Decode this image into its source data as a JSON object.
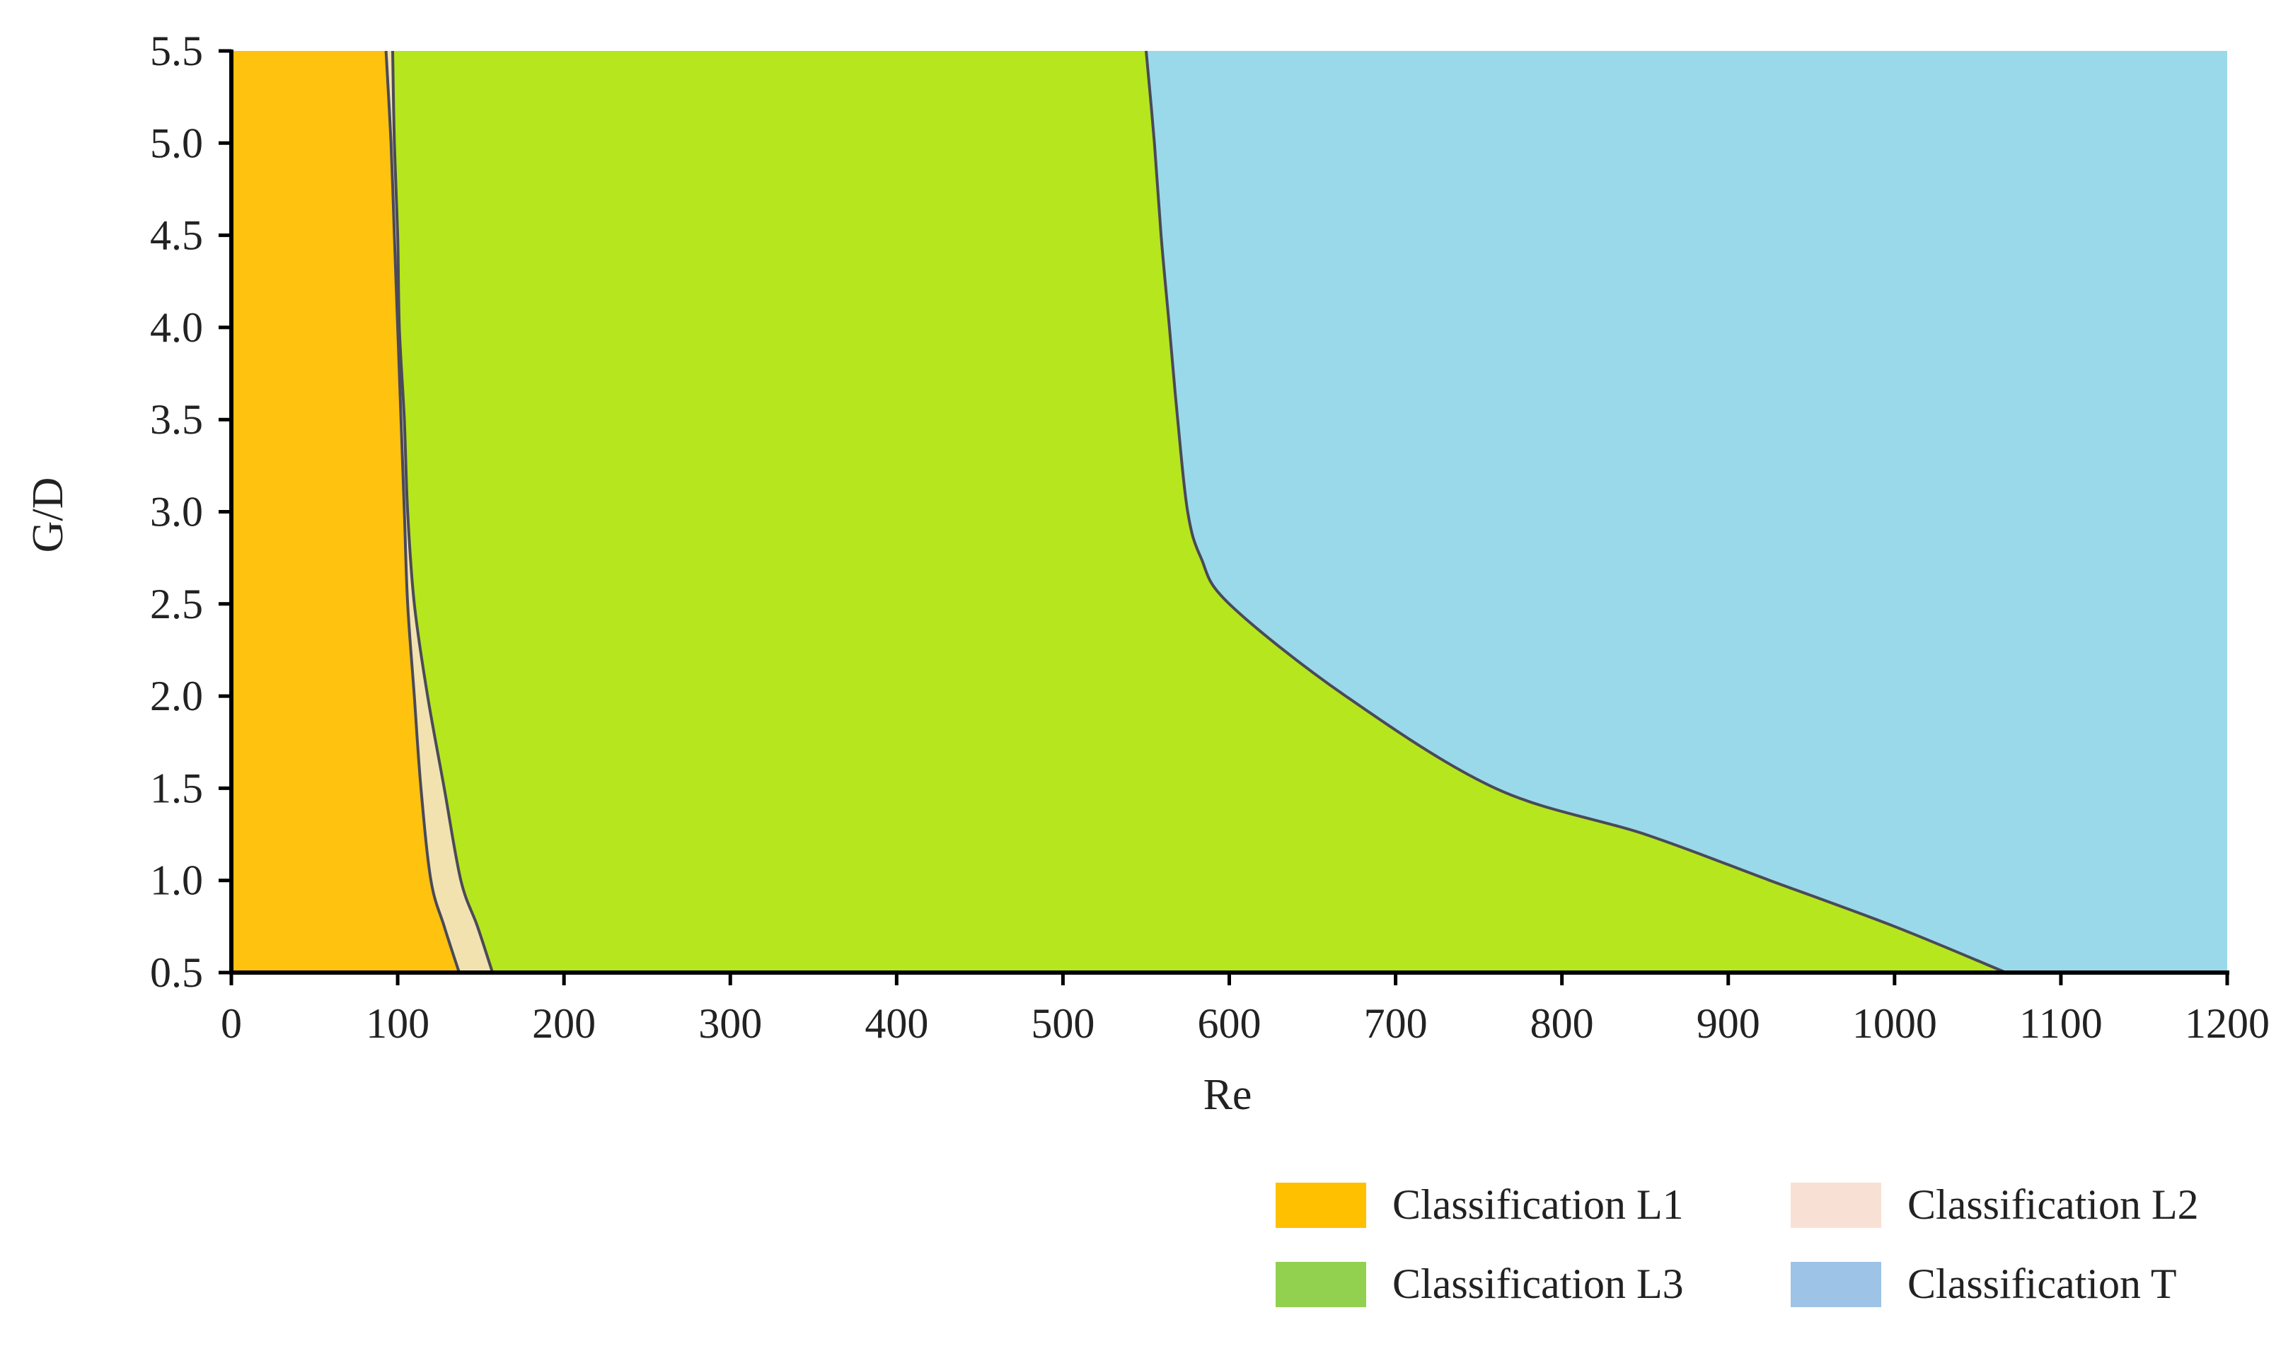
{
  "chart_data": {
    "type": "area",
    "title": "",
    "xlabel": "Re",
    "ylabel": "G/D",
    "xlim": [
      0,
      1200
    ],
    "ylim": [
      0.5,
      5.5
    ],
    "x_ticks": [
      "0",
      "100",
      "200",
      "300",
      "400",
      "500",
      "600",
      "700",
      "800",
      "900",
      "1000",
      "1100",
      "1200"
    ],
    "y_ticks": [
      "0.5",
      "1.0",
      "1.5",
      "2.0",
      "2.5",
      "3.0",
      "3.5",
      "4.0",
      "4.5",
      "5.0",
      "5.5"
    ],
    "grid": false,
    "legend_position": "bottom-right",
    "boundaries": {
      "L1_L2": [
        {
          "gd": 0.5,
          "re": 137
        },
        {
          "gd": 0.75,
          "re": 128
        },
        {
          "gd": 1.0,
          "re": 120
        },
        {
          "gd": 1.5,
          "re": 114
        },
        {
          "gd": 2.0,
          "re": 110
        },
        {
          "gd": 2.5,
          "re": 106
        },
        {
          "gd": 3.0,
          "re": 104
        },
        {
          "gd": 3.5,
          "re": 102
        },
        {
          "gd": 4.0,
          "re": 100
        },
        {
          "gd": 4.5,
          "re": 98
        },
        {
          "gd": 5.0,
          "re": 96
        },
        {
          "gd": 5.5,
          "re": 93
        }
      ],
      "L2_L3": [
        {
          "gd": 0.5,
          "re": 157
        },
        {
          "gd": 0.75,
          "re": 148
        },
        {
          "gd": 1.0,
          "re": 138
        },
        {
          "gd": 1.5,
          "re": 128
        },
        {
          "gd": 2.0,
          "re": 118
        },
        {
          "gd": 2.5,
          "re": 110
        },
        {
          "gd": 3.0,
          "re": 106
        },
        {
          "gd": 3.5,
          "re": 104
        },
        {
          "gd": 4.0,
          "re": 101
        },
        {
          "gd": 4.5,
          "re": 100
        },
        {
          "gd": 5.0,
          "re": 98
        },
        {
          "gd": 5.5,
          "re": 97
        }
      ],
      "L3_T": [
        {
          "gd": 0.5,
          "re": 1067
        },
        {
          "gd": 0.75,
          "re": 1000
        },
        {
          "gd": 1.0,
          "re": 925
        },
        {
          "gd": 1.25,
          "re": 850
        },
        {
          "gd": 1.5,
          "re": 760
        },
        {
          "gd": 2.0,
          "re": 670
        },
        {
          "gd": 2.5,
          "re": 600
        },
        {
          "gd": 2.75,
          "re": 583
        },
        {
          "gd": 3.0,
          "re": 575
        },
        {
          "gd": 3.5,
          "re": 569
        },
        {
          "gd": 4.0,
          "re": 564
        },
        {
          "gd": 4.5,
          "re": 559
        },
        {
          "gd": 5.0,
          "re": 555
        },
        {
          "gd": 5.5,
          "re": 550
        }
      ]
    },
    "regions": [
      {
        "key": "L1",
        "color": "#FFC20E"
      },
      {
        "key": "L2",
        "color": "#F2E2B0"
      },
      {
        "key": "L3",
        "color": "#B6E61E"
      },
      {
        "key": "T",
        "color": "#9AD9EA"
      }
    ],
    "legend": [
      {
        "label": "Classification L1",
        "color": "#FFC000"
      },
      {
        "label": "Classification L2",
        "color": "#F9E0D4"
      },
      {
        "label": "Classification L3",
        "color": "#92D050"
      },
      {
        "label": "Classification T",
        "color": "#9DC3E6"
      }
    ]
  }
}
